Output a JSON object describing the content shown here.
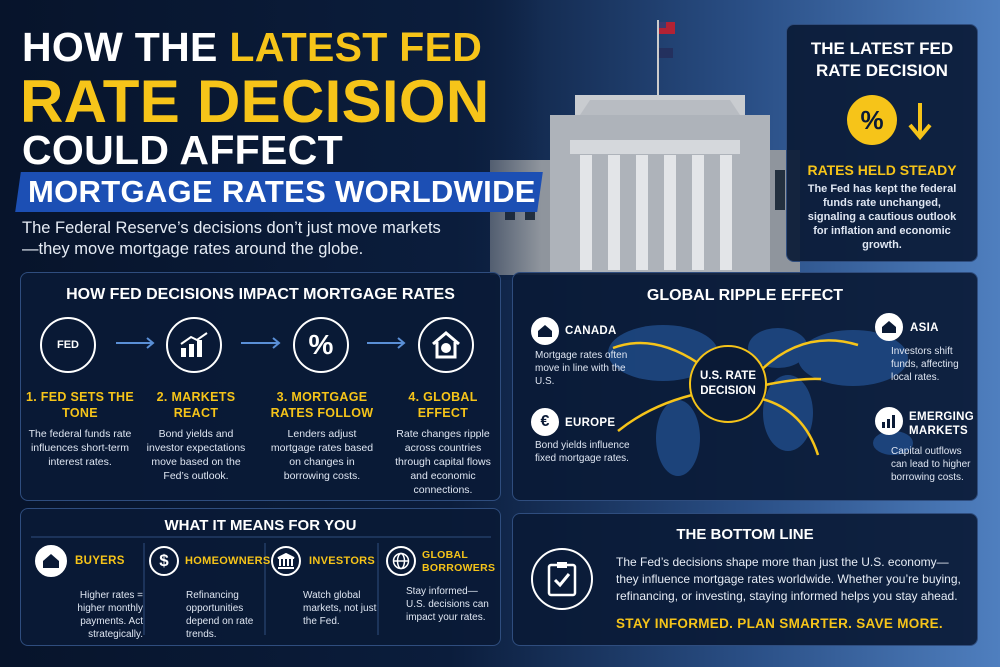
{
  "header": {
    "title_part1": "HOW THE",
    "title_part2": "LATEST FED",
    "title_part3": "RATE DECISION",
    "title_part4": "COULD AFFECT",
    "banner": "MORTGAGE RATES WORLDWIDE",
    "subtitle": "The Federal Reserve’s decisions don’t just move markets—they move mortgage rates around the globe."
  },
  "latest_decision": {
    "title": "THE LATEST FED RATE DECISION",
    "icon": "%",
    "status": "RATES HELD STEADY",
    "text": "The Fed has kept the federal funds rate unchanged, signaling a cautious outlook for inflation and economic growth."
  },
  "impact": {
    "title": "HOW FED DECISIONS IMPACT MORTGAGE RATES",
    "steps": [
      {
        "icon": "FED",
        "title": "1. FED SETS THE TONE",
        "text": "The federal funds rate influences short-term interest rates."
      },
      {
        "title": "2. MARKETS REACT",
        "text": "Bond yields and investor expectations move based on the Fed’s outlook."
      },
      {
        "icon": "%",
        "title": "3. MORTGAGE RATES FOLLOW",
        "text": "Lenders adjust mortgage rates based on changes in borrowing costs."
      },
      {
        "title": "4. GLOBAL EFFECT",
        "text": "Rate changes ripple across countries through capital flows and economic connections."
      }
    ]
  },
  "ripple": {
    "title": "GLOBAL RIPPLE EFFECT",
    "center": "U.S. RATE DECISION",
    "regions": [
      {
        "name": "CANADA",
        "text": "Mortgage rates often move in line with the U.S."
      },
      {
        "icon": "€",
        "name": "EUROPE",
        "text": "Bond yields influence fixed mortgage rates."
      },
      {
        "name": "ASIA",
        "text": "Investors shift funds, affecting local rates."
      },
      {
        "name": "EMERGING MARKETS",
        "text": "Capital outflows can lead to higher borrowing costs."
      }
    ]
  },
  "for_you": {
    "title": "WHAT IT MEANS FOR YOU",
    "groups": [
      {
        "name": "BUYERS",
        "text": "Higher rates = higher monthly payments. Act strategically."
      },
      {
        "icon": "$",
        "name": "HOMEOWNERS",
        "text": "Refinancing opportunities depend on rate trends."
      },
      {
        "name": "INVESTORS",
        "text": "Watch global markets, not just the Fed."
      },
      {
        "name": "GLOBAL BORROWERS",
        "text": "Stay informed—U.S. decisions can impact your rates."
      }
    ]
  },
  "bottom_line": {
    "title": "THE BOTTOM LINE",
    "text": "The Fed’s decisions shape more than just the U.S. economy—they influence mortgage rates worldwide. Whether you’re buying, refinancing, or investing, staying informed helps you stay ahead.",
    "call_to_action": "STAY INFORMED. PLAN SMARTER. SAVE MORE."
  }
}
